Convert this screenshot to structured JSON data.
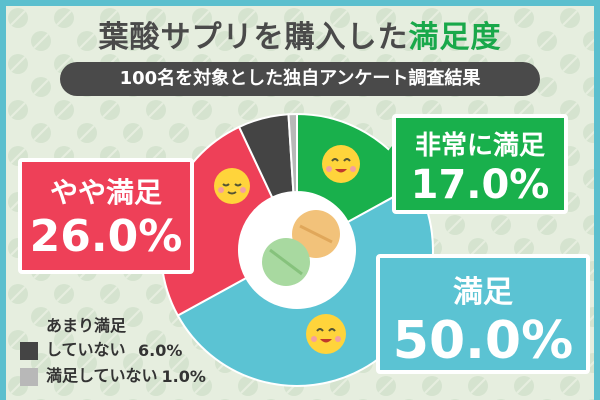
{
  "chart_data": {
    "type": "pie",
    "title": "葉酸サプリを購入した",
    "title_highlight": "満足度",
    "subtitle": "100名を対象とした独自アンケート調査結果",
    "categories": [
      "非常に満足",
      "満足",
      "やや満足",
      "あまり満足していない",
      "満足していない"
    ],
    "values": [
      17,
      50,
      26,
      6,
      1
    ],
    "value_labels": [
      "17.0%",
      "50.0%",
      "26.0%",
      "6.0%",
      "1.0%"
    ],
    "colors": [
      "#19b04c",
      "#5bc3d3",
      "#ee4058",
      "#444444",
      "#b8b8b8"
    ]
  }
}
